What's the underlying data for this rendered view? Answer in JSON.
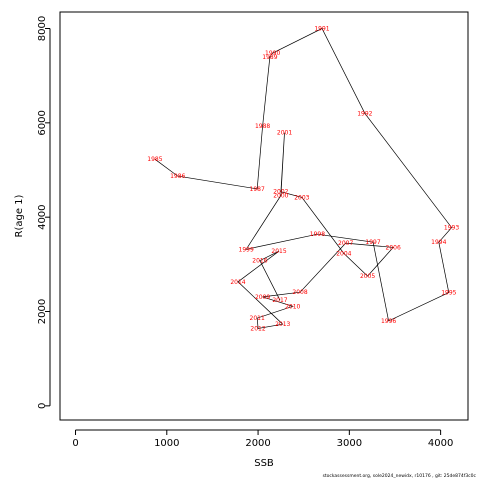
{
  "chart_data": {
    "type": "line",
    "xlabel": "SSB",
    "ylabel": "R(age 1)",
    "xlim": [
      -170,
      4300
    ],
    "ylim": [
      -300,
      8350
    ],
    "x_ticks": [
      0,
      1000,
      2000,
      3000,
      4000
    ],
    "y_ticks": [
      0,
      2000,
      4000,
      6000,
      8000
    ],
    "line_color": "#000000",
    "label_color": "#ff0000",
    "points": [
      {
        "year": "1985",
        "x": 870,
        "y": 5230
      },
      {
        "year": "1986",
        "x": 1120,
        "y": 4870
      },
      {
        "year": "1987",
        "x": 1990,
        "y": 4600
      },
      {
        "year": "1988",
        "x": 2050,
        "y": 5930
      },
      {
        "year": "1989",
        "x": 2130,
        "y": 7400
      },
      {
        "year": "1990",
        "x": 2160,
        "y": 7480
      },
      {
        "year": "1991",
        "x": 2700,
        "y": 8000
      },
      {
        "year": "1992",
        "x": 3170,
        "y": 6200
      },
      {
        "year": "1993",
        "x": 4120,
        "y": 3780
      },
      {
        "year": "1994",
        "x": 3980,
        "y": 3470
      },
      {
        "year": "1995",
        "x": 4090,
        "y": 2400
      },
      {
        "year": "1996",
        "x": 3430,
        "y": 1800
      },
      {
        "year": "1997",
        "x": 3260,
        "y": 3470
      },
      {
        "year": "1998",
        "x": 2650,
        "y": 3640
      },
      {
        "year": "1999",
        "x": 1870,
        "y": 3320
      },
      {
        "year": "2000",
        "x": 2250,
        "y": 4460
      },
      {
        "year": "2001",
        "x": 2290,
        "y": 5790
      },
      {
        "year": "2002",
        "x": 2250,
        "y": 4540
      },
      {
        "year": "2003",
        "x": 2480,
        "y": 4420
      },
      {
        "year": "2004",
        "x": 2940,
        "y": 3230
      },
      {
        "year": "2005",
        "x": 3200,
        "y": 2750
      },
      {
        "year": "2006",
        "x": 3480,
        "y": 3360
      },
      {
        "year": "2007",
        "x": 2960,
        "y": 3450
      },
      {
        "year": "2008",
        "x": 2460,
        "y": 2410
      },
      {
        "year": "2009",
        "x": 2050,
        "y": 2310
      },
      {
        "year": "2010",
        "x": 2380,
        "y": 2110
      },
      {
        "year": "2011",
        "x": 1990,
        "y": 1860
      },
      {
        "year": "2012",
        "x": 2000,
        "y": 1640
      },
      {
        "year": "2013",
        "x": 2270,
        "y": 1730
      },
      {
        "year": "2014",
        "x": 1780,
        "y": 2630
      },
      {
        "year": "2015",
        "x": 2230,
        "y": 3280
      },
      {
        "year": "2016",
        "x": 2020,
        "y": 3080
      },
      {
        "year": "2017",
        "x": 2240,
        "y": 2240
      }
    ]
  },
  "footer_text": "stockassessment.org, sole2024_newidx, r10176 , git: 25de874f3c0c"
}
